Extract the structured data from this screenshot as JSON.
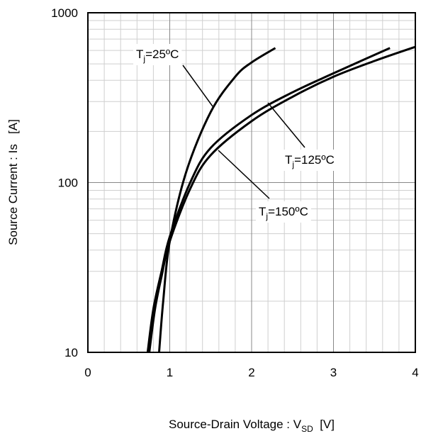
{
  "chart_data": {
    "type": "line",
    "x_label": [
      "Source-Drain Voltage : V",
      "SD",
      "  [V]"
    ],
    "y_label": "Source Current : Is   [A]",
    "xlim": [
      0,
      4
    ],
    "ylim": [
      10,
      1000
    ],
    "xticks": [
      0,
      1,
      2,
      3,
      4
    ],
    "yticks": [
      10,
      100,
      1000
    ],
    "x_minor_grid": [
      0.2,
      0.4,
      0.6,
      0.8,
      1.2,
      1.4,
      1.6,
      1.8,
      2.2,
      2.4,
      2.6,
      2.8,
      3.2,
      3.4,
      3.6,
      3.8
    ],
    "y_minor_grid": [
      20,
      30,
      40,
      50,
      60,
      70,
      80,
      90,
      200,
      300,
      400,
      500,
      600,
      700,
      800,
      900
    ],
    "y_log": true,
    "grid": true,
    "series": [
      {
        "name": [
          "T",
          "j",
          "=25ºC"
        ],
        "color": "#000000",
        "x": [
          0.87,
          0.92,
          1.0,
          1.2,
          1.5,
          1.8,
          2.0,
          2.29
        ],
        "values": [
          10,
          20,
          45,
          115,
          260,
          420,
          510,
          620
        ]
      },
      {
        "name": [
          "T",
          "j",
          "=125ºC"
        ],
        "color": "#000000",
        "x": [
          0.73,
          0.8,
          0.9,
          1.0,
          1.25,
          1.5,
          2.0,
          2.5,
          3.0,
          3.69
        ],
        "values": [
          10,
          18,
          30,
          48,
          100,
          160,
          250,
          340,
          440,
          620
        ]
      },
      {
        "name": [
          "T",
          "j",
          "=150ºC"
        ],
        "color": "#000000",
        "x": [
          0.75,
          0.82,
          0.9,
          1.0,
          1.25,
          1.5,
          2.0,
          2.5,
          3.0,
          3.5,
          4.0
        ],
        "values": [
          10,
          18,
          28,
          45,
          92,
          145,
          230,
          320,
          420,
          520,
          630
        ]
      }
    ]
  }
}
